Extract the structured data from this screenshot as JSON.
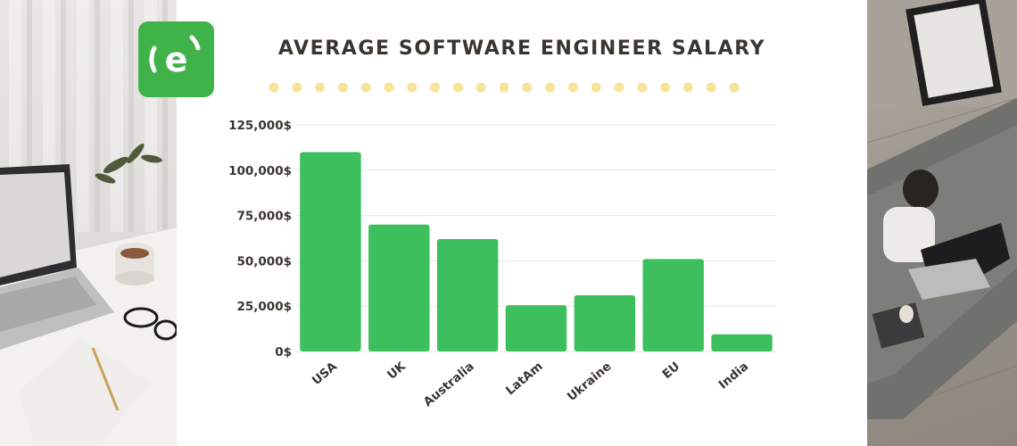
{
  "brand": {
    "logo_letter": "e",
    "accent": "#3fb24a"
  },
  "chart_data": {
    "type": "bar",
    "title": "AVERAGE SOFTWARE ENGINEER SALARY",
    "xlabel": "",
    "ylabel": "",
    "categories": [
      "USA",
      "UK",
      "Australia",
      "LatAm",
      "Ukraine",
      "EU",
      "India"
    ],
    "values": [
      110000,
      70000,
      62000,
      25500,
      31000,
      51000,
      9500
    ],
    "ylim": [
      0,
      125000
    ],
    "yticks": [
      0,
      25000,
      50000,
      75000,
      100000,
      125000
    ],
    "ytick_labels": [
      "0$",
      "25,000$",
      "50,000$",
      "75,000$",
      "100,000$",
      "125,000$"
    ],
    "bar_color": "#3cbf5c",
    "grid": true,
    "legend": "none"
  }
}
